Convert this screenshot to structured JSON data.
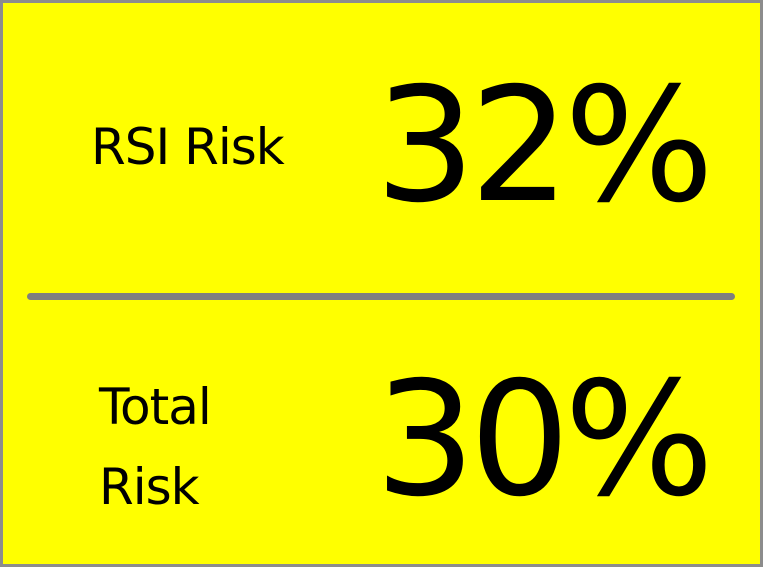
{
  "rsi_risk": {
    "label": "RSI Risk",
    "value": "32%"
  },
  "total_risk": {
    "label_line1": "Total",
    "label_line2": "Risk",
    "value": "30%"
  },
  "colors": {
    "background": "#ffff00",
    "divider": "#7f7f7f",
    "border": "#8c8c8c",
    "text": "#000000"
  }
}
